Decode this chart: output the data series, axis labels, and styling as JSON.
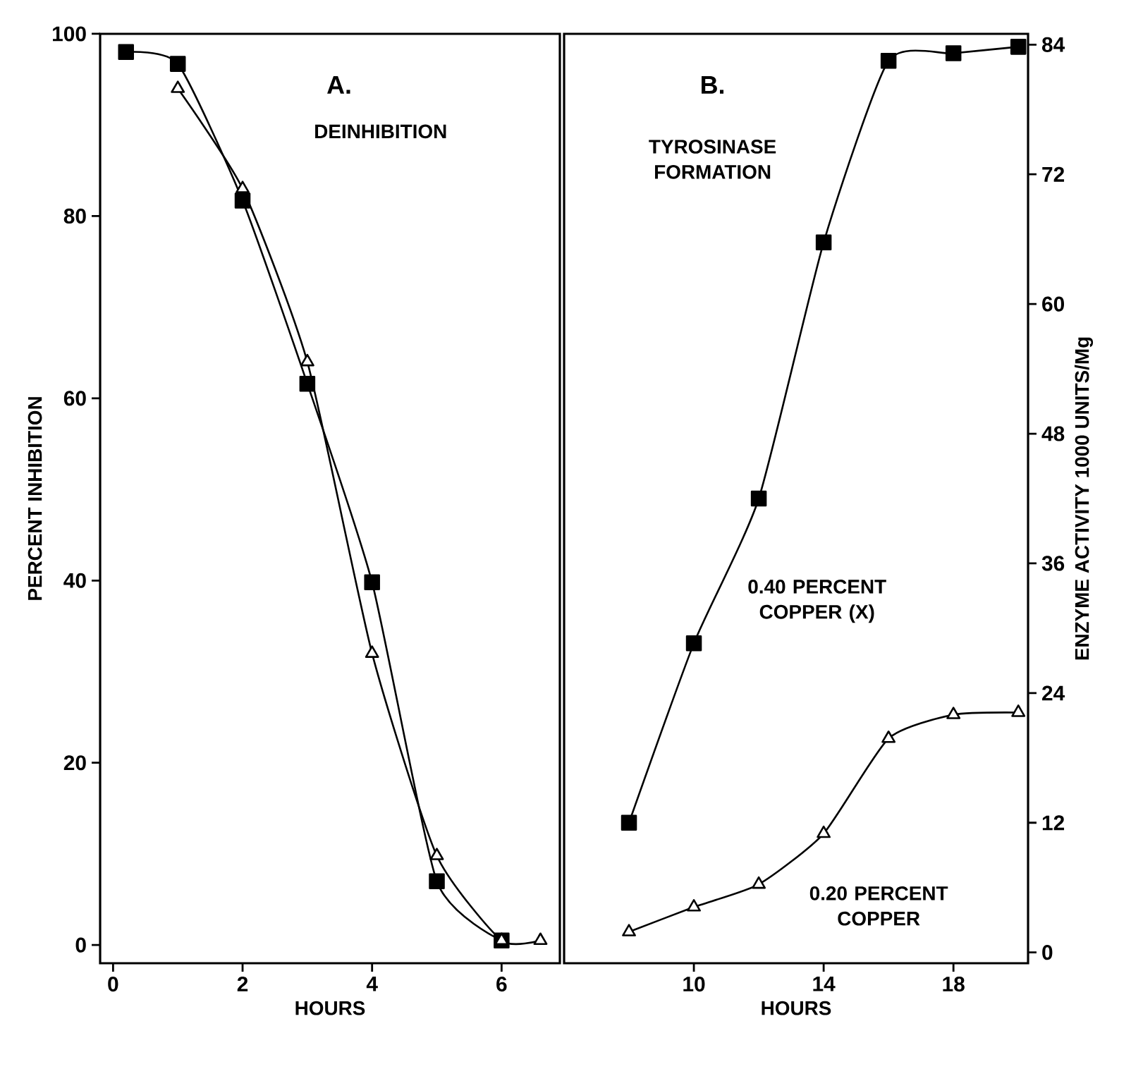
{
  "chart_data": [
    {
      "type": "line",
      "xlabel": "HOURS",
      "ylabel": "PERCENT INHIBITION",
      "annotations": [
        "A.",
        "DEINHIBITION"
      ],
      "xlim": [
        -0.2,
        6.9
      ],
      "xticks": [
        0,
        2,
        4,
        6
      ],
      "ylim": [
        -2,
        100
      ],
      "yticks": [
        0,
        20,
        40,
        60,
        80,
        100
      ],
      "series": [
        {
          "color": "#000000",
          "marker": "square",
          "x": [
            0.2,
            1,
            2,
            3,
            4,
            5,
            6
          ],
          "values": [
            98,
            96.7,
            81.7,
            61.6,
            39.8,
            7,
            0.5
          ]
        },
        {
          "color": "#000000",
          "marker": "triangle",
          "x": [
            1,
            2,
            3,
            4,
            5,
            6,
            6.6
          ],
          "values": [
            94,
            83,
            64,
            32,
            9.8,
            0.5,
            0.5
          ]
        }
      ]
    },
    {
      "type": "line",
      "xlabel": "HOURS",
      "y2label": "ENZYME ACTIVITY 1000 UNITS/Mg",
      "annotations": [
        "B.",
        "TYROSINASE FORMATION"
      ],
      "xlim": [
        6,
        20.3
      ],
      "xticks": [
        10,
        14,
        18
      ],
      "y2lim": [
        -1,
        85
      ],
      "y2ticks": [
        0,
        12,
        24,
        36,
        48,
        60,
        72,
        84
      ],
      "series": [
        {
          "name": "0.40 PERCENT COPPER (X)",
          "color": "#000000",
          "marker": "square",
          "axis": "y2",
          "x": [
            8,
            10,
            12,
            14,
            16,
            18,
            20
          ],
          "values": [
            12,
            28.6,
            42,
            65.7,
            82.5,
            83.2,
            83.8
          ]
        },
        {
          "name": "0.20 PERCENT COPPER",
          "color": "#000000",
          "marker": "triangle",
          "axis": "y2",
          "x": [
            8,
            10,
            12,
            14,
            16,
            18,
            20
          ],
          "values": [
            1.9,
            4.2,
            6.3,
            11,
            19.8,
            22,
            22.2
          ]
        }
      ]
    }
  ]
}
